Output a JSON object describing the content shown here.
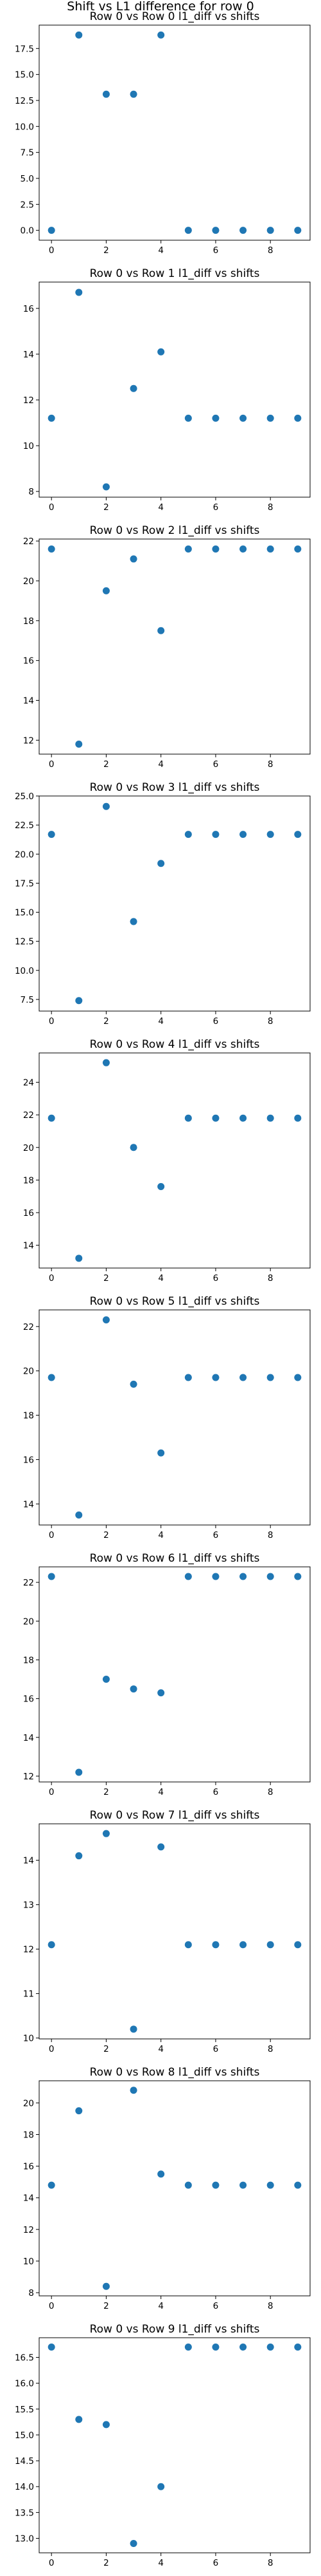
{
  "chart_data": {
    "suptitle": "Shift vs L1 difference for row 0",
    "subplots": [
      {
        "type": "scatter",
        "title": "Row 0 vs Row 0 l1_diff vs shifts",
        "x": [
          0,
          1,
          2,
          3,
          4,
          5,
          6,
          7,
          8,
          9
        ],
        "y": [
          0.0,
          18.8,
          13.1,
          13.1,
          18.8,
          0.0,
          0.0,
          0.0,
          0.0,
          0.0
        ],
        "ylim": [
          -0.95,
          19.75
        ],
        "yticks": [
          0.0,
          2.5,
          5.0,
          7.5,
          10.0,
          12.5,
          15.0,
          17.5
        ],
        "ytick_labels": [
          "0.0",
          "2.5",
          "5.0",
          "7.5",
          "10.0",
          "12.5",
          "15.0",
          "17.5"
        ]
      },
      {
        "type": "scatter",
        "title": "Row 0 vs Row 1 l1_diff vs shifts",
        "x": [
          0,
          1,
          2,
          3,
          4,
          5,
          6,
          7,
          8,
          9
        ],
        "y": [
          11.2,
          16.7,
          8.2,
          12.5,
          14.1,
          11.2,
          11.2,
          11.2,
          11.2,
          11.2
        ],
        "ylim": [
          7.75,
          17.15
        ],
        "yticks": [
          8,
          10,
          12,
          14,
          16
        ],
        "ytick_labels": [
          "8",
          "10",
          "12",
          "14",
          "16"
        ]
      },
      {
        "type": "scatter",
        "title": "Row 0 vs Row 2 l1_diff vs shifts",
        "x": [
          0,
          1,
          2,
          3,
          4,
          5,
          6,
          7,
          8,
          9
        ],
        "y": [
          21.6,
          11.8,
          19.5,
          21.1,
          17.5,
          21.6,
          21.6,
          21.6,
          21.6,
          21.6
        ],
        "ylim": [
          11.3,
          22.1
        ],
        "yticks": [
          12,
          14,
          16,
          18,
          20,
          22
        ],
        "ytick_labels": [
          "12",
          "14",
          "16",
          "18",
          "20",
          "22"
        ]
      },
      {
        "type": "scatter",
        "title": "Row 0 vs Row 3 l1_diff vs shifts",
        "x": [
          0,
          1,
          2,
          3,
          4,
          5,
          6,
          7,
          8,
          9
        ],
        "y": [
          21.7,
          7.4,
          24.1,
          14.2,
          19.2,
          21.7,
          21.7,
          21.7,
          21.7,
          21.7
        ],
        "ylim": [
          6.5,
          25.0
        ],
        "yticks": [
          7.5,
          10.0,
          12.5,
          15.0,
          17.5,
          20.0,
          22.5,
          25.0
        ],
        "ytick_labels": [
          "7.5",
          "10.0",
          "12.5",
          "15.0",
          "17.5",
          "20.0",
          "22.5",
          "25.0"
        ]
      },
      {
        "type": "scatter",
        "title": "Row 0 vs Row 4 l1_diff vs shifts",
        "x": [
          0,
          1,
          2,
          3,
          4,
          5,
          6,
          7,
          8,
          9
        ],
        "y": [
          21.8,
          13.2,
          25.2,
          20.0,
          17.6,
          21.8,
          21.8,
          21.8,
          21.8,
          21.8
        ],
        "ylim": [
          12.6,
          25.8
        ],
        "yticks": [
          14,
          16,
          18,
          20,
          22,
          24
        ],
        "ytick_labels": [
          "14",
          "16",
          "18",
          "20",
          "22",
          "24"
        ]
      },
      {
        "type": "scatter",
        "title": "Row 0 vs Row 5 l1_diff vs shifts",
        "x": [
          0,
          1,
          2,
          3,
          4,
          5,
          6,
          7,
          8,
          9
        ],
        "y": [
          19.7,
          13.5,
          22.3,
          19.4,
          16.3,
          19.7,
          19.7,
          19.7,
          19.7,
          19.7
        ],
        "ylim": [
          13.05,
          22.75
        ],
        "yticks": [
          14,
          16,
          18,
          20,
          22
        ],
        "ytick_labels": [
          "14",
          "16",
          "18",
          "20",
          "22"
        ]
      },
      {
        "type": "scatter",
        "title": "Row 0 vs Row 6 l1_diff vs shifts",
        "x": [
          0,
          1,
          2,
          3,
          4,
          5,
          6,
          7,
          8,
          9
        ],
        "y": [
          22.3,
          12.2,
          17.0,
          16.5,
          16.3,
          22.3,
          22.3,
          22.3,
          22.3,
          22.3
        ],
        "ylim": [
          11.7,
          22.8
        ],
        "yticks": [
          12,
          14,
          16,
          18,
          20,
          22
        ],
        "ytick_labels": [
          "12",
          "14",
          "16",
          "18",
          "20",
          "22"
        ]
      },
      {
        "type": "scatter",
        "title": "Row 0 vs Row 7 l1_diff vs shifts",
        "x": [
          0,
          1,
          2,
          3,
          4,
          5,
          6,
          7,
          8,
          9
        ],
        "y": [
          12.1,
          14.1,
          14.6,
          10.2,
          14.3,
          12.1,
          12.1,
          12.1,
          12.1,
          12.1
        ],
        "ylim": [
          9.98,
          14.82
        ],
        "yticks": [
          10,
          11,
          12,
          13,
          14
        ],
        "ytick_labels": [
          "10",
          "11",
          "12",
          "13",
          "14"
        ]
      },
      {
        "type": "scatter",
        "title": "Row 0 vs Row 8 l1_diff vs shifts",
        "x": [
          0,
          1,
          2,
          3,
          4,
          5,
          6,
          7,
          8,
          9
        ],
        "y": [
          14.8,
          19.5,
          8.4,
          20.8,
          15.5,
          14.8,
          14.8,
          14.8,
          14.8,
          14.8
        ],
        "ylim": [
          7.8,
          21.4
        ],
        "yticks": [
          8,
          10,
          12,
          14,
          16,
          18,
          20
        ],
        "ytick_labels": [
          "8",
          "10",
          "12",
          "14",
          "16",
          "18",
          "20"
        ]
      },
      {
        "type": "scatter",
        "title": "Row 0 vs Row 9 l1_diff vs shifts",
        "x": [
          0,
          1,
          2,
          3,
          4,
          5,
          6,
          7,
          8,
          9
        ],
        "y": [
          16.7,
          15.3,
          15.2,
          12.9,
          14.0,
          16.7,
          16.7,
          16.7,
          16.7,
          16.7
        ],
        "ylim": [
          12.72,
          16.88
        ],
        "yticks": [
          13.0,
          13.5,
          14.0,
          14.5,
          15.0,
          15.5,
          16.0,
          16.5
        ],
        "ytick_labels": [
          "13.0",
          "13.5",
          "14.0",
          "14.5",
          "15.0",
          "15.5",
          "16.0",
          "16.5"
        ]
      }
    ],
    "xlim": [
      -0.45,
      9.45
    ],
    "xticks": [
      0,
      2,
      4,
      6,
      8
    ],
    "xtick_labels": [
      "0",
      "2",
      "4",
      "6",
      "8"
    ],
    "grid": false,
    "legend": "none",
    "marker_color": "#1f77b4"
  }
}
